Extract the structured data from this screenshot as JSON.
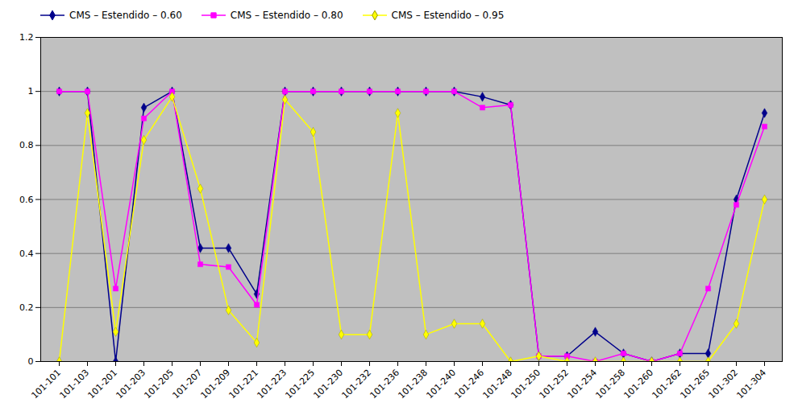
{
  "chart_data": {
    "type": "line",
    "categories": [
      "101-101",
      "101-103",
      "101-201",
      "101-203",
      "101-205",
      "101-207",
      "101-209",
      "101-221",
      "101-223",
      "101-225",
      "101-230",
      "101-232",
      "101-236",
      "101-238",
      "101-240",
      "101-246",
      "101-248",
      "101-250",
      "101-252",
      "101-254",
      "101-258",
      "101-260",
      "101-262",
      "101-265",
      "101-302",
      "101-304"
    ],
    "series": [
      {
        "name": "CMS – Estendido – 0.60",
        "color": "#00008B",
        "marker": "diamond",
        "values": [
          1.0,
          1.0,
          0.0,
          0.94,
          1.0,
          0.42,
          0.42,
          0.25,
          1.0,
          1.0,
          1.0,
          1.0,
          1.0,
          1.0,
          1.0,
          0.98,
          0.95,
          0.02,
          0.02,
          0.11,
          0.03,
          0.0,
          0.03,
          0.03,
          0.6,
          0.92
        ]
      },
      {
        "name": "CMS – Estendido – 0.80",
        "color": "#FF00FF",
        "marker": "square",
        "values": [
          1.0,
          1.0,
          0.27,
          0.9,
          1.0,
          0.36,
          0.35,
          0.21,
          1.0,
          1.0,
          1.0,
          1.0,
          1.0,
          1.0,
          1.0,
          0.94,
          0.95,
          0.02,
          0.02,
          0.0,
          0.03,
          0.0,
          0.03,
          0.27,
          0.58,
          0.87
        ]
      },
      {
        "name": "CMS – Estendido – 0.95",
        "color": "#FFFF00",
        "marker": "diamond",
        "values": [
          0.0,
          0.92,
          0.11,
          0.82,
          0.98,
          0.64,
          0.19,
          0.07,
          0.97,
          0.85,
          0.1,
          0.1,
          0.92,
          0.1,
          0.14,
          0.14,
          0.0,
          0.02,
          0.0,
          0.0,
          0.0,
          0.0,
          0.0,
          0.0,
          0.14,
          0.6
        ]
      }
    ],
    "ylim": [
      0,
      1.2
    ],
    "yticks": [
      0,
      0.2,
      0.4,
      0.6,
      0.8,
      1.0,
      1.2
    ],
    "grid": true,
    "legend": "top"
  }
}
